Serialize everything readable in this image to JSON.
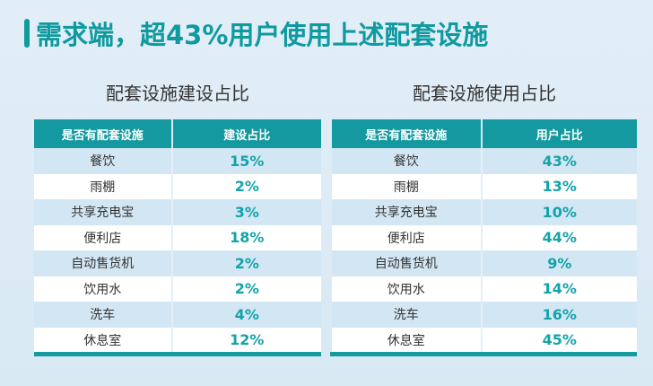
{
  "title": "需求端，超43%用户使用上述配套设施",
  "accent_color": "#13999f",
  "tables": [
    {
      "subtitle": "配套设施建设占比",
      "headers": [
        "是否有配套设施",
        "建设占比"
      ],
      "rows": [
        [
          "餐饮",
          "15%"
        ],
        [
          "雨棚",
          "2%"
        ],
        [
          "共享充电宝",
          "3%"
        ],
        [
          "便利店",
          "18%"
        ],
        [
          "自动售货机",
          "2%"
        ],
        [
          "饮用水",
          "2%"
        ],
        [
          "洗车",
          "4%"
        ],
        [
          "休息室",
          "12%"
        ]
      ]
    },
    {
      "subtitle": "配套设施使用占比",
      "headers": [
        "是否有配套设施",
        "用户占比"
      ],
      "rows": [
        [
          "餐饮",
          "43%"
        ],
        [
          "雨棚",
          "13%"
        ],
        [
          "共享充电宝",
          "10%"
        ],
        [
          "便利店",
          "44%"
        ],
        [
          "自动售货机",
          "9%"
        ],
        [
          "饮用水",
          "14%"
        ],
        [
          "洗车",
          "16%"
        ],
        [
          "休息室",
          "45%"
        ]
      ]
    }
  ]
}
